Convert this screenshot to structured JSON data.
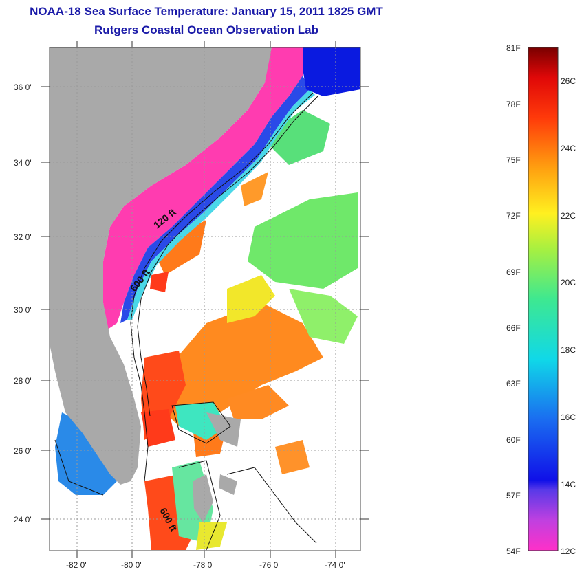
{
  "title": "NOAA-18 Sea Surface Temperature:  January 15, 2011 1825 GMT",
  "subtitle": "Rutgers Coastal Ocean Observation Lab",
  "map": {
    "lat_ticks": [
      "36 0'",
      "34 0'",
      "32 0'",
      "30 0'",
      "28 0'",
      "26 0'",
      "24 0'"
    ],
    "lon_ticks": [
      "-82 0'",
      "-80 0'",
      "-78 0'",
      "-76 0'",
      "-74 0'"
    ],
    "contour_labels": [
      "120 ft",
      "600 ft",
      "600 ft"
    ],
    "colors": {
      "land": "#a9a9a9",
      "cloud": "#ffffff",
      "grid": "#999999"
    }
  },
  "colorbar": {
    "f_labels": [
      "81F",
      "78F",
      "75F",
      "72F",
      "69F",
      "66F",
      "63F",
      "60F",
      "57F",
      "54F"
    ],
    "c_labels": [
      "26C",
      "24C",
      "22C",
      "20C",
      "18C",
      "16C",
      "14C",
      "12C"
    ],
    "range_c": [
      12,
      27
    ]
  }
}
